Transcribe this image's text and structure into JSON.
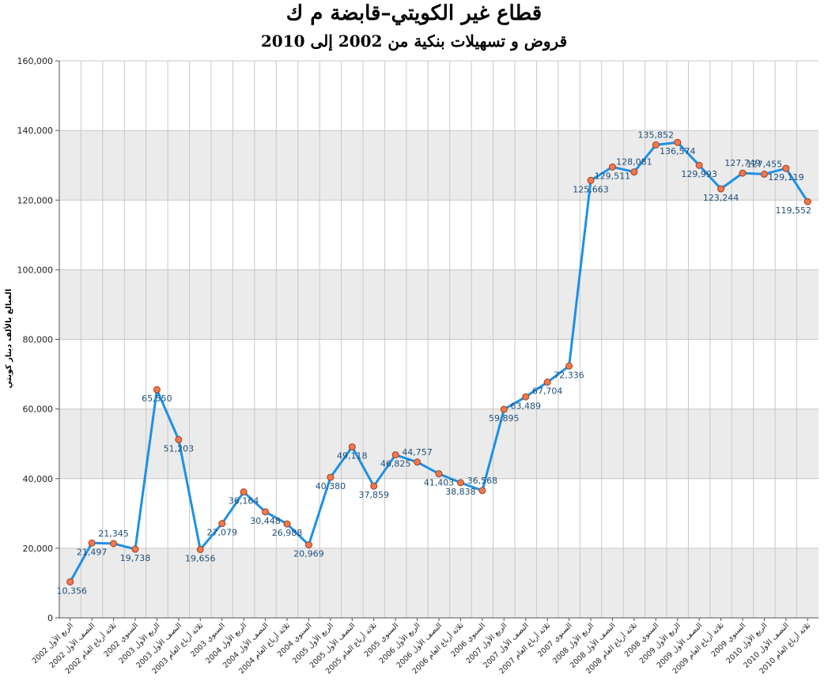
{
  "chart_data": {
    "type": "line",
    "title": "قطاع غير الكويتي–قابضة م ك",
    "subtitle": "قروض و تسهيلات بنكية من 2002 إلى 2010",
    "ylabel": "المبالغ بالألف دينار كويتي",
    "xlabel": "",
    "ylim": [
      0,
      160000
    ],
    "yticks": [
      0,
      20000,
      40000,
      60000,
      80000,
      100000,
      120000,
      140000,
      160000
    ],
    "ytick_labels": [
      "0",
      "20,000",
      "40,000",
      "60,000",
      "80,000",
      "100,000",
      "120,000",
      "140,000",
      "160,000"
    ],
    "grid": true,
    "line_color": "#1e90e6",
    "marker_color": "#f07850",
    "band_color": "#ebebeb",
    "categories": [
      "الربع الأول 2002",
      "النصف الأول 2002",
      "ثلاثة أرباع العام 2002",
      "السنوي 2002",
      "الربع الأول 2003",
      "النصف الأول 2003",
      "ثلاثة أرباع العام 2003",
      "السنوي 2003",
      "الربع الأول 2004",
      "النصف الأول 2004",
      "ثلاثة أرباع العام 2004",
      "السنوي 2004",
      "الربع الأول 2005",
      "النصف الأول 2005",
      "ثلاثة أرباع العام 2005",
      "السنوي 2005",
      "الربع الأول 2006",
      "النصف الأول 2006",
      "ثلاثة أرباع العام 2006",
      "السنوي 2006",
      "الربع الأول 2007",
      "النصف الأول 2007",
      "ثلاثة أرباع العام 2007",
      "السنوي 2007",
      "الربع الأول 2008",
      "النصف الأول 2008",
      "ثلاثة أرباع العام 2008",
      "السنوي 2008",
      "الربع الأول 2009",
      "النصف الأول 2009",
      "ثلاثة أرباع العام 2009",
      "السنوي 2009",
      "الربع الأول 2010",
      "النصف الأول 2010",
      "ثلاثة أرباع العام 2010"
    ],
    "values": [
      10356,
      21497,
      21345,
      19738,
      65550,
      51203,
      19656,
      27079,
      36164,
      30448,
      26988,
      20969,
      40380,
      49118,
      37859,
      46825,
      44757,
      41403,
      38838,
      36568,
      59895,
      63489,
      67704,
      72336,
      125663,
      129511,
      128081,
      135852,
      136574,
      129993,
      123244,
      127749,
      127455,
      129119,
      119552
    ],
    "labels": [
      "10,356",
      "21,497",
      "21,345",
      "19,738",
      "65,550",
      "51,203",
      "19,656",
      "27,079",
      "36,164",
      "30,448",
      "26,988",
      "20,969",
      "40,380",
      "49,118",
      "37,859",
      "46,825",
      "44,757",
      "41,403",
      "38,838",
      "36,568",
      "59,895",
      "63,489",
      "67,704",
      "72,336",
      "125,663",
      "129,511",
      "128,081",
      "135,852",
      "136,574",
      "129,993",
      "123,244",
      "127,749",
      "127,455",
      "129,119",
      "119,552"
    ],
    "label_positions": [
      "below",
      "below",
      "above",
      "below",
      "below",
      "below",
      "below",
      "below",
      "below",
      "below",
      "below",
      "below",
      "below",
      "below",
      "below",
      "below",
      "above",
      "below",
      "below",
      "above",
      "below",
      "below",
      "below",
      "below",
      "below",
      "below",
      "above",
      "above",
      "below",
      "below",
      "below",
      "above",
      "above",
      "below",
      "below"
    ]
  }
}
